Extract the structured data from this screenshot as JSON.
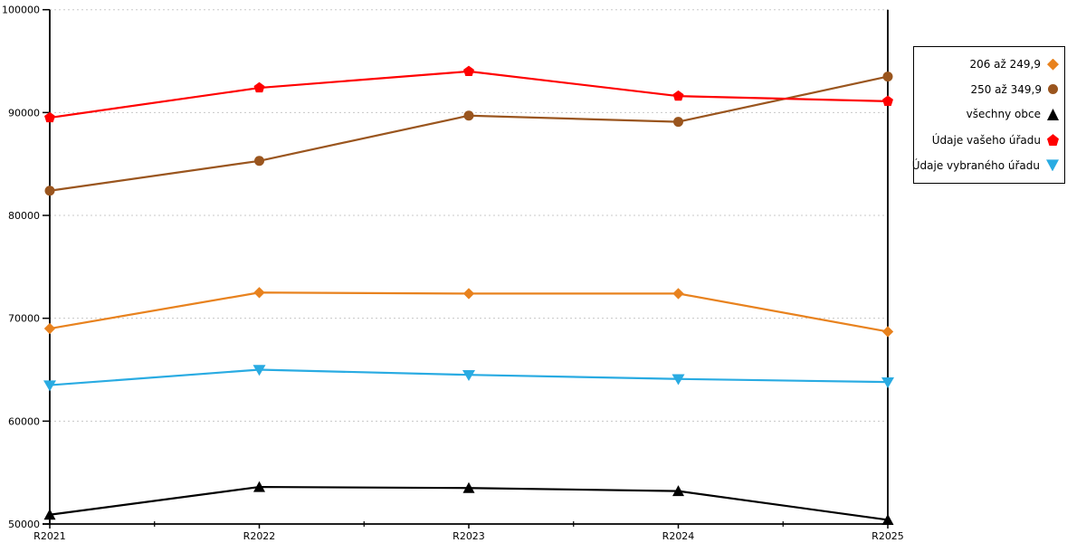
{
  "chart_data": {
    "type": "line",
    "title": "",
    "xlabel": "",
    "ylabel": "",
    "categories": [
      "R2021",
      "R2022",
      "R2023",
      "R2024",
      "R2025"
    ],
    "series": [
      {
        "name": "206 až 249,9",
        "marker": "diamond",
        "color": "#e8821e",
        "values": [
          69000,
          72500,
          72400,
          72400,
          68700
        ]
      },
      {
        "name": "250 až 349,9",
        "marker": "circle",
        "color": "#9a551e",
        "values": [
          82400,
          85300,
          89700,
          89100,
          93500
        ]
      },
      {
        "name": "všechny obce",
        "marker": "triangle-up",
        "color": "#000000",
        "values": [
          50900,
          53600,
          53500,
          53200,
          50400
        ]
      },
      {
        "name": "Údaje vašeho úřadu",
        "marker": "pentagon",
        "color": "#ff0000",
        "values": [
          89500,
          92400,
          94000,
          91600,
          91100
        ]
      },
      {
        "name": "Údaje vybraného úřadu",
        "marker": "triangle-down",
        "color": "#29abe2",
        "values": [
          63500,
          65000,
          64500,
          64100,
          63800
        ]
      }
    ],
    "ylim": [
      50000,
      100000
    ],
    "ytick_step": 10000,
    "y_tick_labels": [
      "50000",
      "60000",
      "70000",
      "80000",
      "90000",
      "100000"
    ],
    "grid": "horizontal-dashed",
    "grid_color": "#c8c8c8",
    "axis_color": "#000000",
    "legend_position": "right"
  }
}
